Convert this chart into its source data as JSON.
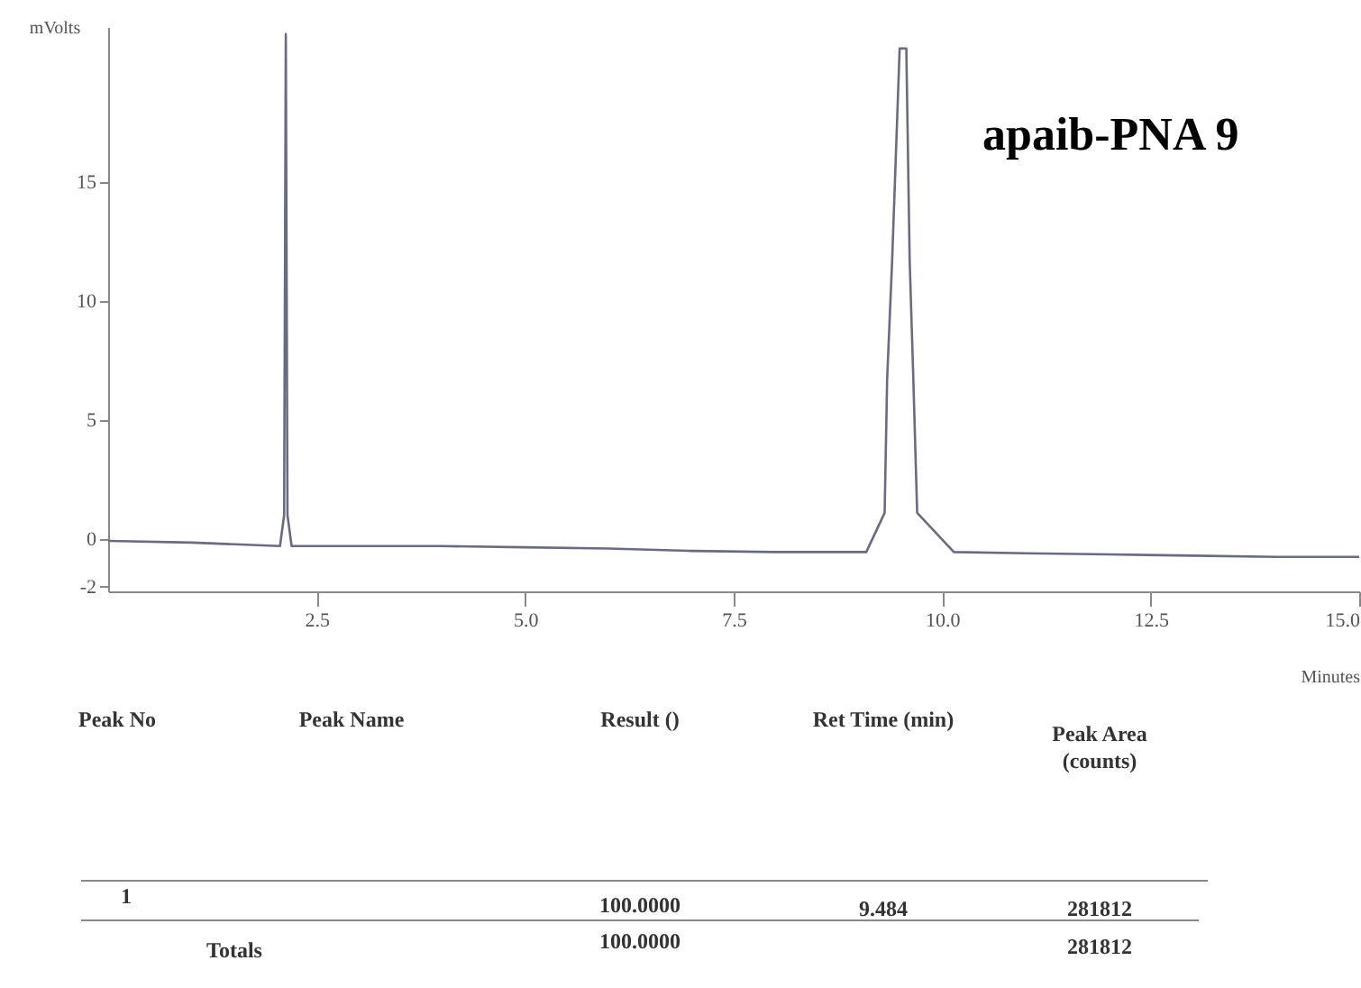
{
  "chart_data": {
    "type": "line",
    "title": "apaib-PNA 9",
    "xlabel": "Minutes",
    "ylabel": "mVolts",
    "xlim": [
      0,
      15
    ],
    "ylim": [
      -2.2,
      21.5
    ],
    "xticks": [
      {
        "value": 2.5,
        "label": "2.5"
      },
      {
        "value": 5,
        "label": "5.0"
      },
      {
        "value": 7.5,
        "label": "7.5"
      },
      {
        "value": 10,
        "label": "10.0"
      },
      {
        "value": 12.5,
        "label": "12.5"
      },
      {
        "value": 15,
        "label": "15.0"
      }
    ],
    "yticks": [
      {
        "value": -2,
        "label": "-2"
      },
      0,
      5,
      10,
      15
    ],
    "series": [
      {
        "color": "#6a6a80",
        "x": [
          0,
          1,
          2.06,
          2.11,
          2.13,
          2.15,
          2.2,
          2.5,
          3,
          4,
          5,
          6,
          7,
          8,
          9,
          9.09,
          9.31,
          9.34,
          9.4,
          9.49,
          9.57,
          9.61,
          9.65,
          9.7,
          10.14,
          11,
          12,
          13,
          14,
          15
        ],
        "values": [
          -0.08,
          -0.15,
          -0.3,
          1,
          21.2,
          1,
          -0.3,
          -0.3,
          -0.3,
          -0.3,
          -0.35,
          -0.4,
          -0.5,
          -0.55,
          -0.55,
          -0.55,
          1.1,
          6.7,
          11.7,
          20.6,
          20.6,
          11.7,
          7.2,
          1.1,
          -0.55,
          -0.6,
          -0.65,
          -0.7,
          -0.75,
          -0.75
        ]
      }
    ],
    "grid": false,
    "marker": "none",
    "line_style": "solid",
    "annotations": [
      "Peak No",
      "Peak Name",
      "Result ()",
      "Ret Time (min)",
      "Peak Area (counts)",
      "1",
      "100.0000",
      "9.484",
      "281812",
      "Totals",
      "100.0000",
      "281812"
    ]
  }
}
